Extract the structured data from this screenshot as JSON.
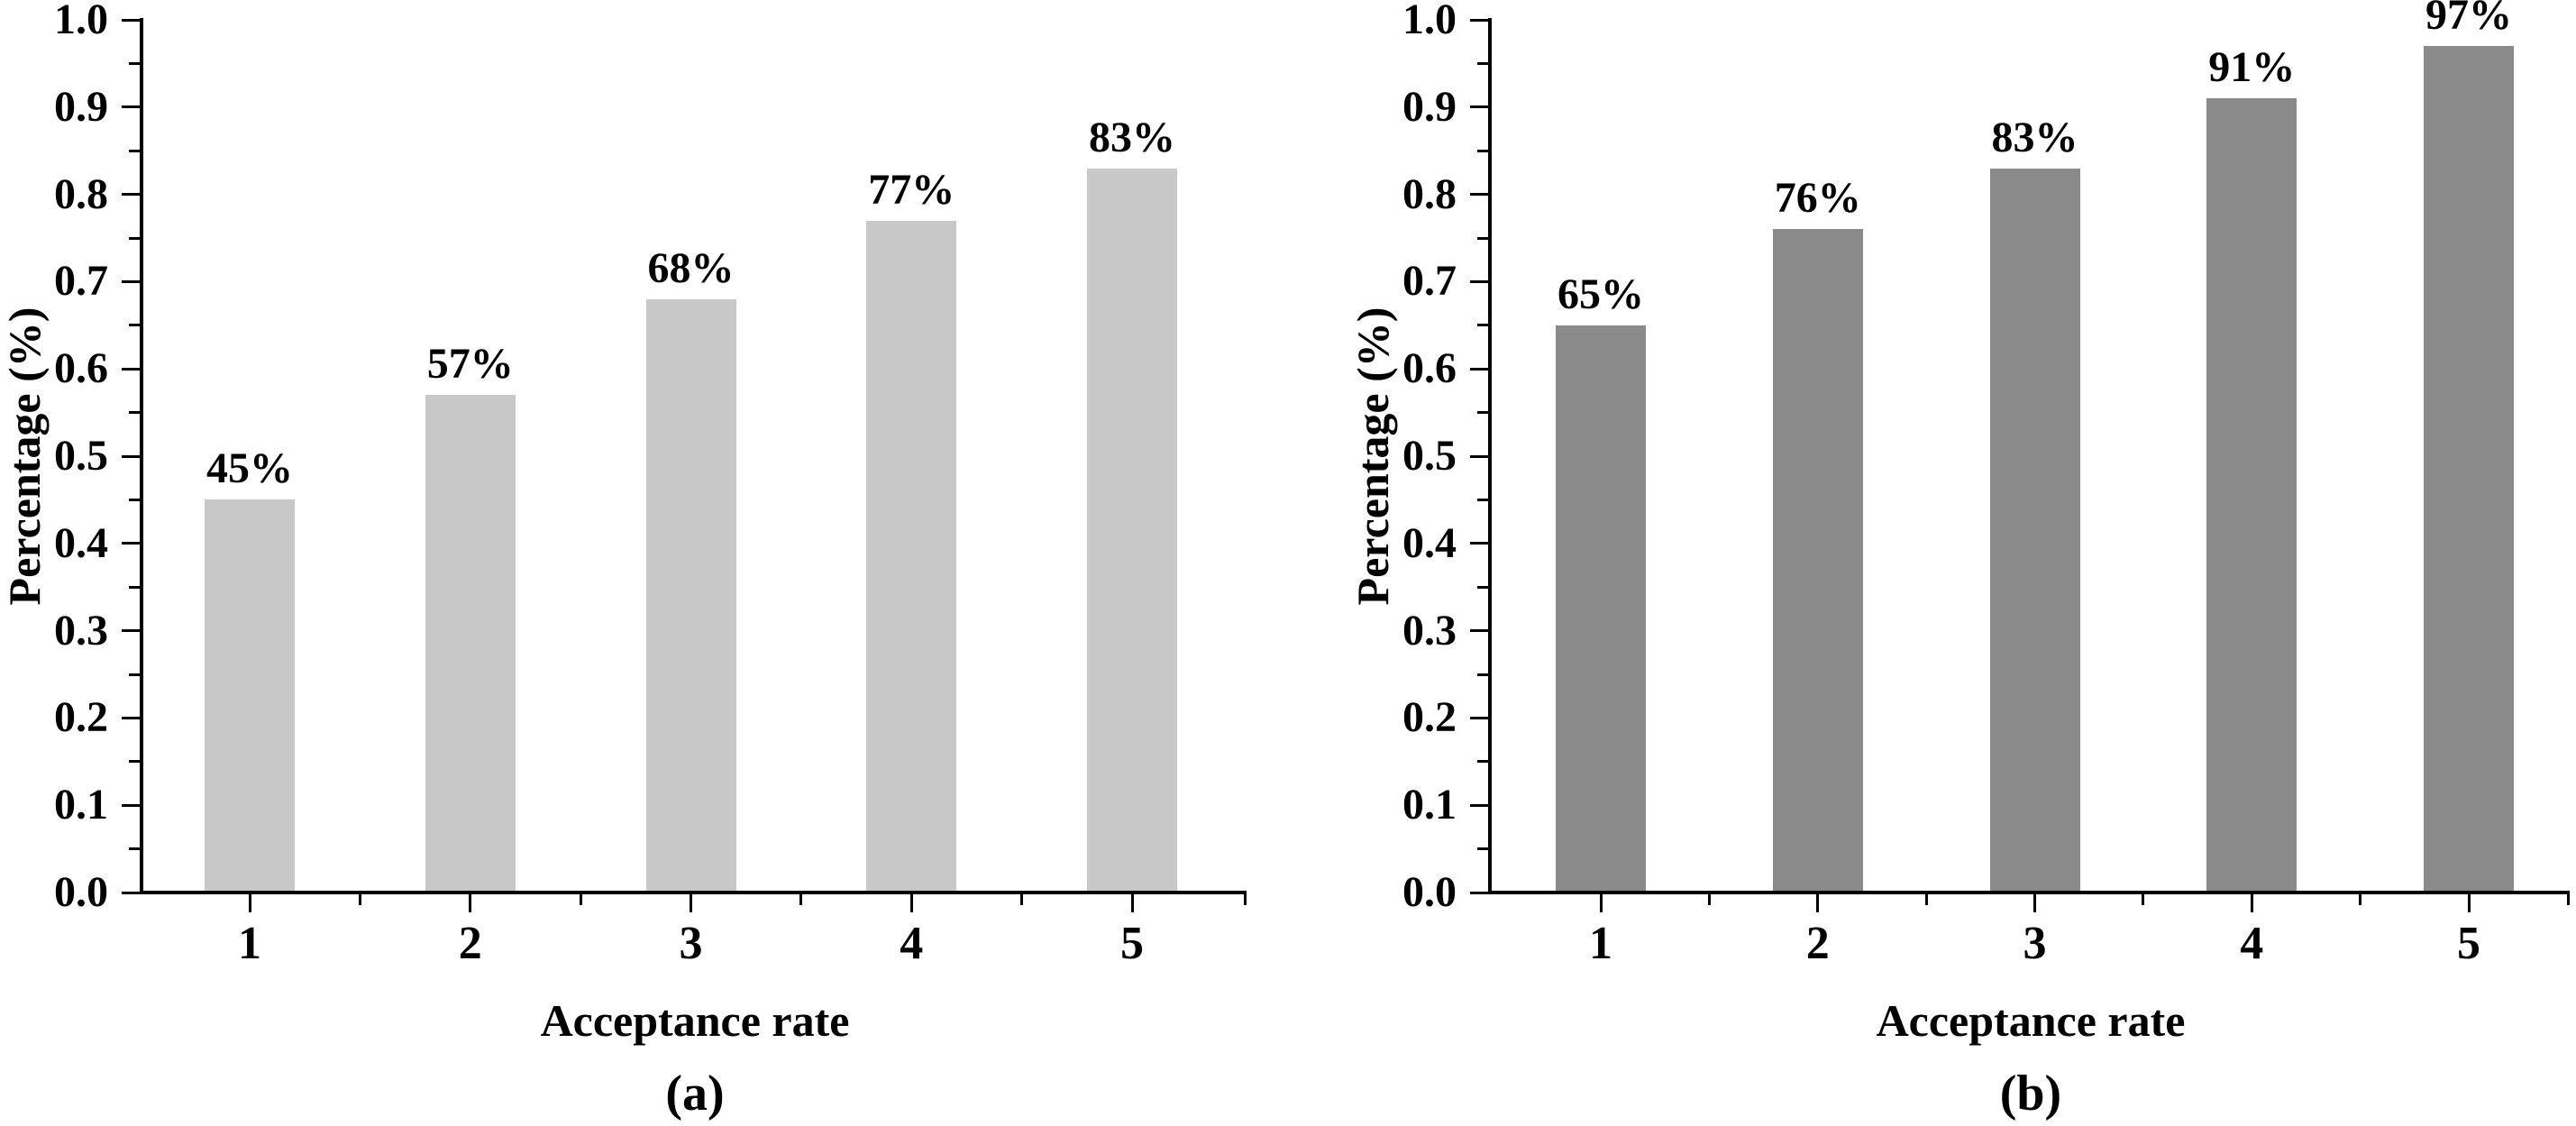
{
  "figure": {
    "background": "#ffffff",
    "text_color": "#000000",
    "axis_color": "#000000"
  },
  "chart_data": [
    {
      "type": "bar",
      "panel_label": "(a)",
      "title": "",
      "xlabel": "Acceptance rate",
      "ylabel": "Percentage (%)",
      "categories": [
        "1",
        "2",
        "3",
        "4",
        "5"
      ],
      "values": [
        0.45,
        0.57,
        0.68,
        0.77,
        0.83
      ],
      "bar_labels": [
        "45%",
        "57%",
        "68%",
        "77%",
        "83%"
      ],
      "bar_color": "#c8c8c8",
      "ylim": [
        0,
        1
      ],
      "ytick_labels": [
        "0.0",
        "0.1",
        "0.2",
        "0.3",
        "0.4",
        "0.5",
        "0.6",
        "0.7",
        "0.8",
        "0.9",
        "1.0"
      ],
      "ytick_values": [
        0,
        0.1,
        0.2,
        0.3,
        0.4,
        0.5,
        0.6,
        0.7,
        0.8,
        0.9,
        1.0
      ],
      "yminor_values": [
        0.05,
        0.15,
        0.25,
        0.35,
        0.45,
        0.55,
        0.65,
        0.75,
        0.85,
        0.95
      ],
      "grid": false,
      "legend": "none"
    },
    {
      "type": "bar",
      "panel_label": "(b)",
      "title": "",
      "xlabel": "Acceptance rate",
      "ylabel": "Percentage (%)",
      "categories": [
        "1",
        "2",
        "3",
        "4",
        "5"
      ],
      "values": [
        0.65,
        0.76,
        0.83,
        0.91,
        0.97
      ],
      "bar_labels": [
        "65%",
        "76%",
        "83%",
        "91%",
        "97%"
      ],
      "bar_color": "#8a8a8a",
      "ylim": [
        0,
        1
      ],
      "ytick_labels": [
        "0.0",
        "0.1",
        "0.2",
        "0.3",
        "0.4",
        "0.5",
        "0.6",
        "0.7",
        "0.8",
        "0.9",
        "1.0"
      ],
      "ytick_values": [
        0,
        0.1,
        0.2,
        0.3,
        0.4,
        0.5,
        0.6,
        0.7,
        0.8,
        0.9,
        1.0
      ],
      "yminor_values": [
        0.05,
        0.15,
        0.25,
        0.35,
        0.45,
        0.55,
        0.65,
        0.75,
        0.85,
        0.95
      ],
      "grid": false,
      "legend": "none"
    }
  ]
}
